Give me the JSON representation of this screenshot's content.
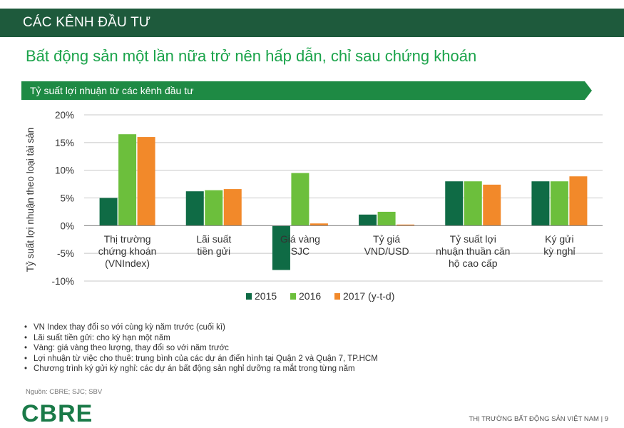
{
  "header": {
    "title": "CÁC KÊNH ĐẦU TƯ"
  },
  "headline": "Bất động sản một lần nữa trở nên hấp dẫn, chỉ sau chứng khoán",
  "banner": {
    "title": "Tỷ suất lợi nhuận từ các kênh đầu tư"
  },
  "colors": {
    "header_bg": "#1e5a3c",
    "banner_bg": "#1e8a44",
    "s2015": "#0f6b45",
    "s2016": "#6cbf3c",
    "s2017": "#f2892a"
  },
  "chart_data": {
    "type": "bar",
    "title": "Tỷ suất lợi nhuận từ các kênh đầu tư",
    "ylabel": "Tỷ suất lợi nhuận theo loại tài sản",
    "ylim": [
      -10,
      20
    ],
    "yticks": [
      20,
      15,
      10,
      5,
      0,
      -5,
      -10
    ],
    "ytick_labels": [
      "20%",
      "15%",
      "10%",
      "5%",
      "0%",
      "-5%",
      "-10%"
    ],
    "grid": true,
    "legend": "bottom",
    "categories": [
      [
        "Thị trường",
        "chứng khoán",
        "(VNIndex)"
      ],
      [
        "Lãi suất",
        "tiền gửi"
      ],
      [
        "Giá vàng",
        "SJC"
      ],
      [
        "Tỷ giá",
        "VND/USD"
      ],
      [
        "Tỷ suất lợi",
        "nhuận thuần căn",
        "hộ cao cấp"
      ],
      [
        "Ký gửi",
        "kỳ nghỉ"
      ]
    ],
    "series": [
      {
        "name": "2015",
        "values": [
          5,
          6.2,
          -8,
          2,
          8,
          8
        ]
      },
      {
        "name": "2016",
        "values": [
          16.5,
          6.4,
          9.5,
          2.5,
          8,
          8
        ]
      },
      {
        "name": "2017 (y-t-d)",
        "values": [
          16,
          6.6,
          0.4,
          0.2,
          7.4,
          8.9
        ]
      }
    ]
  },
  "notes": [
    "VN Index thay đổi so với cùng kỳ năm trước (cuối kì)",
    "Lãi suất tiền gửi: cho kỳ hạn một năm",
    "Vàng: giá vàng theo lượng, thay đổi so với năm trước",
    "Lợi nhuận từ việc cho thuê: trung bình của các dự án điển hình tại Quận 2 và Quận 7, TP.HCM",
    "Chương trình ký gửi kỳ nghỉ: các dự án bất động sản nghỉ dưỡng ra mắt trong từng năm"
  ],
  "source": "Nguồn: CBRE; SJC; SBV",
  "logo": "CBRE",
  "footer": "THỊ TRƯỜNG BẤT ĐỘNG SẢN VIỆT NAM | 9"
}
